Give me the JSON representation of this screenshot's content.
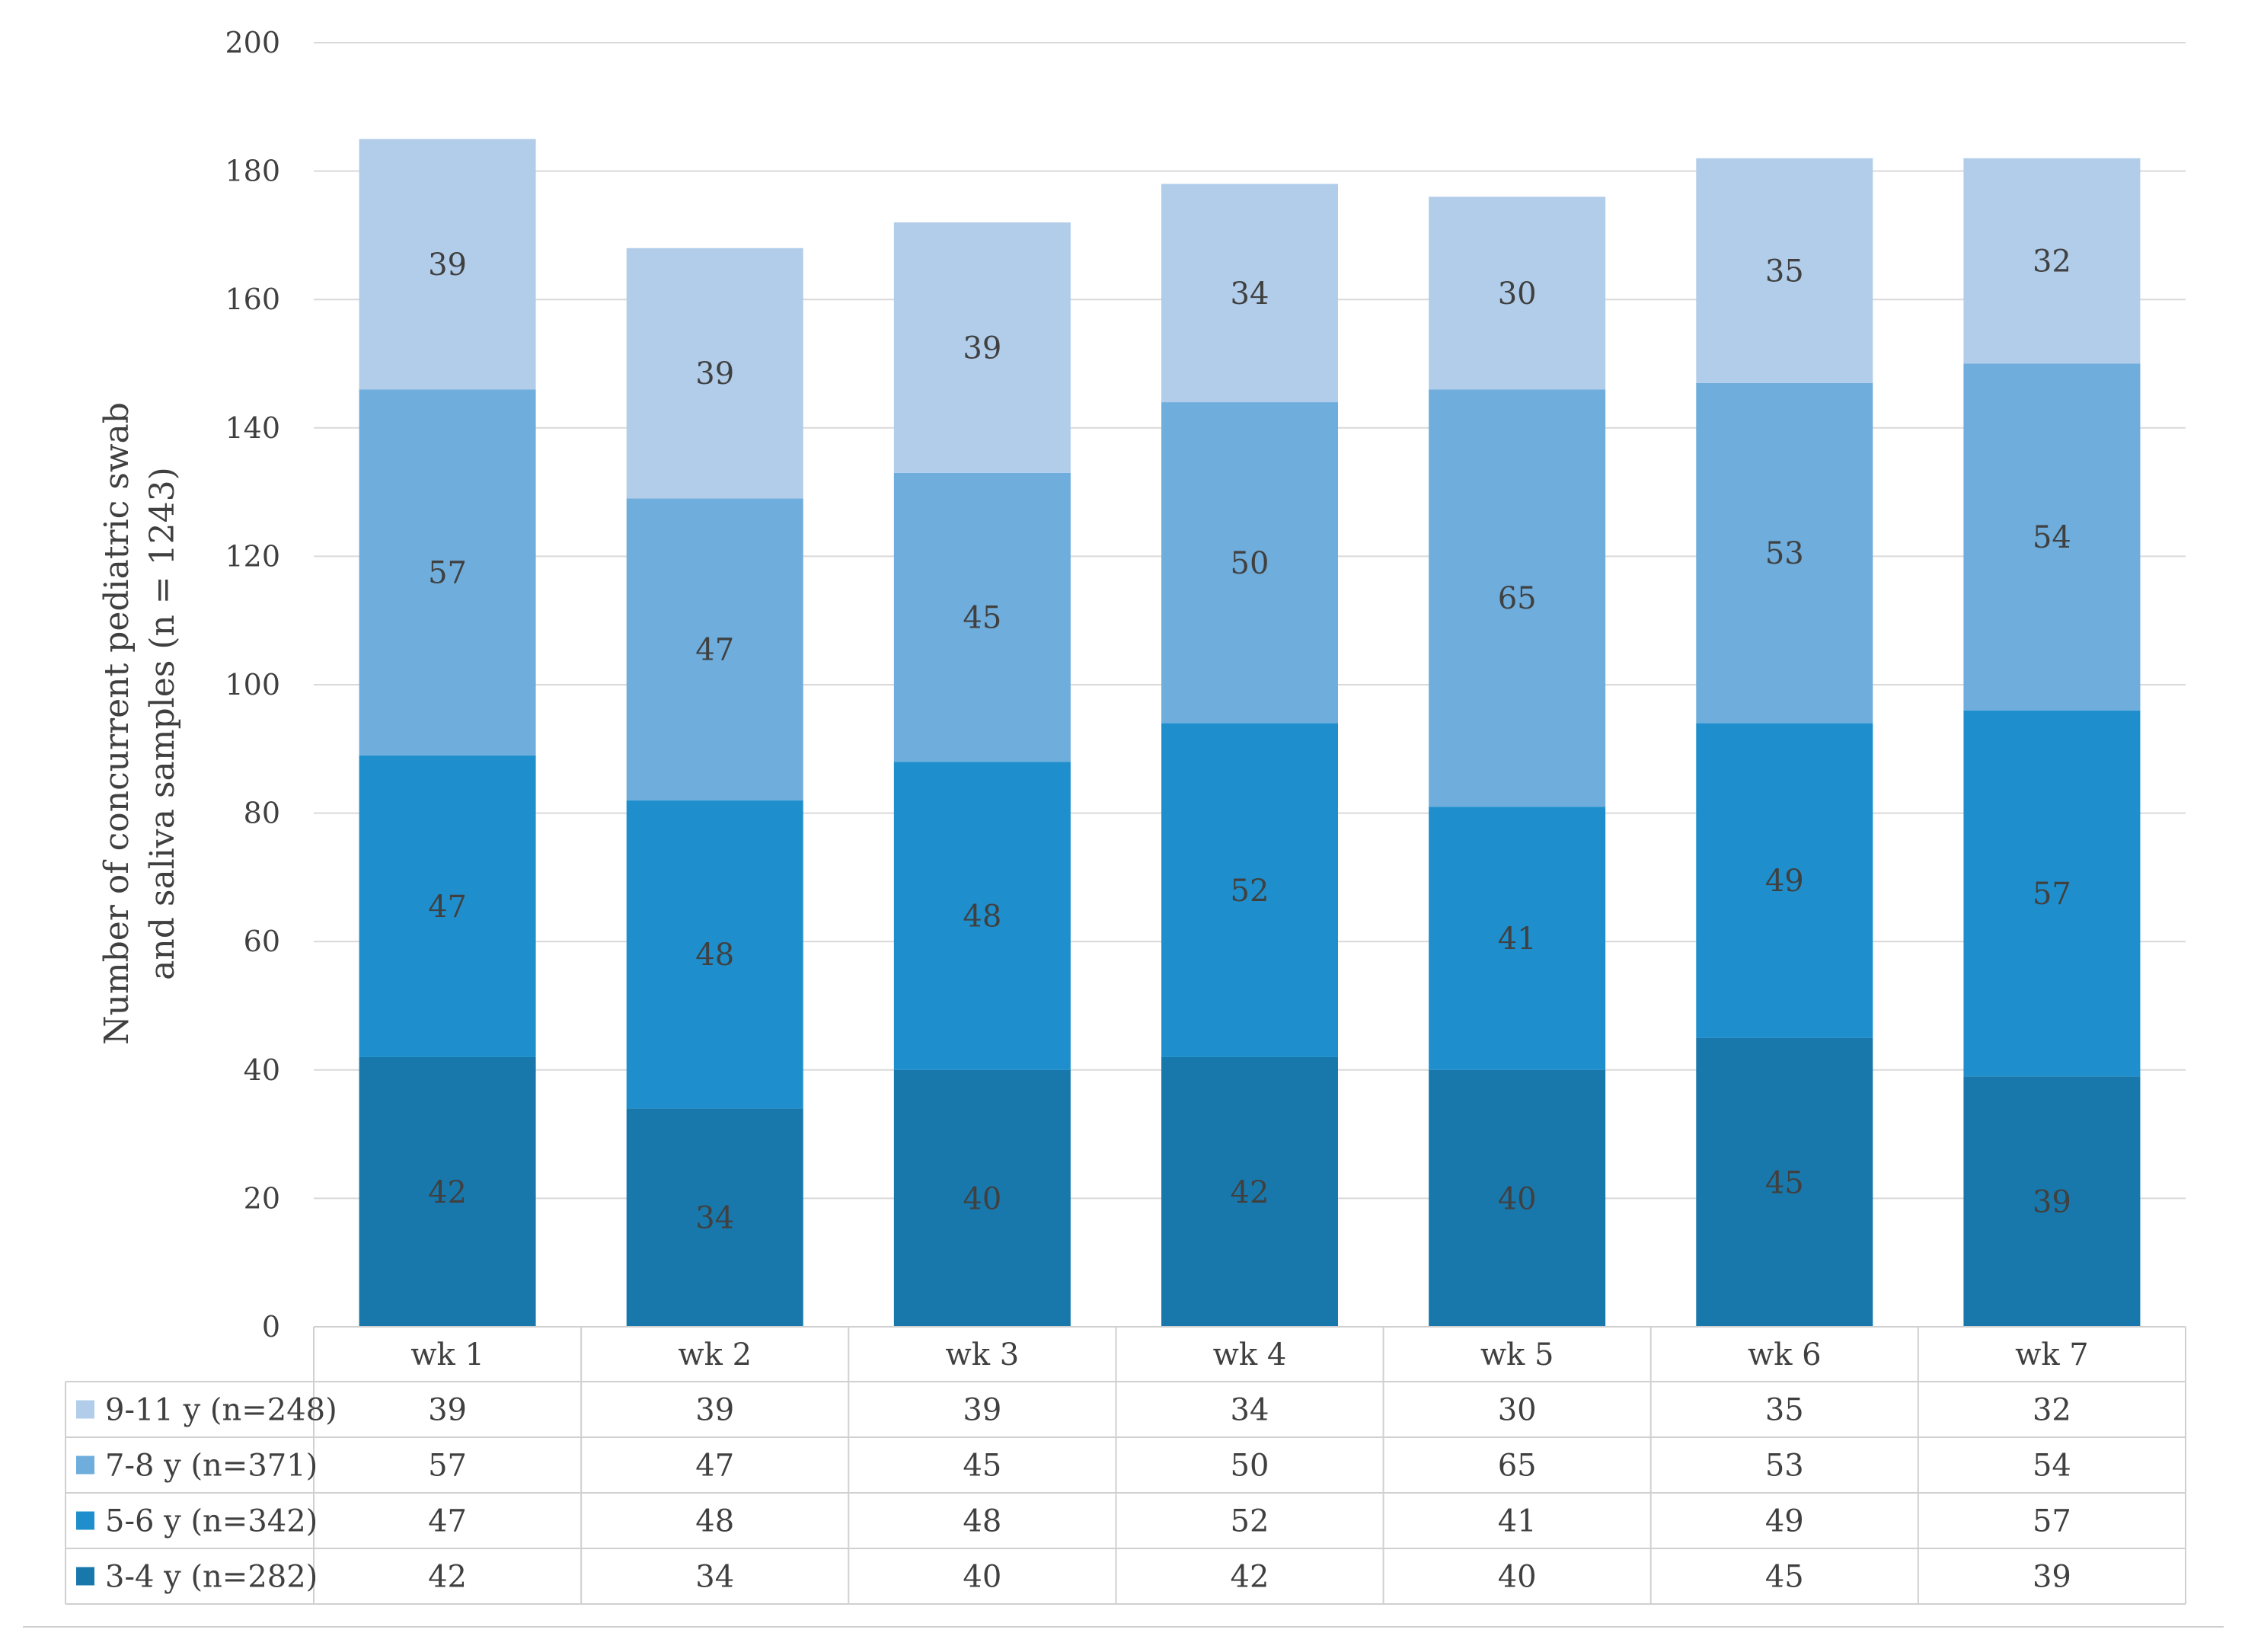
{
  "chart_data": {
    "type": "bar",
    "stacked": true,
    "ylabel_lines": [
      "Number of concurrent pediatric swab",
      "and saliva samples (n = 1243)"
    ],
    "ylim": [
      0,
      200
    ],
    "yticks": [
      "0",
      "20",
      "40",
      "60",
      "80",
      "100",
      "120",
      "140",
      "160",
      "180",
      "200"
    ],
    "grid": true,
    "legend_placement": "data-table-left",
    "categories": [
      "wk 1",
      "wk 2",
      "wk 3",
      "wk 4",
      "wk 5",
      "wk 6",
      "wk 7"
    ],
    "series": [
      {
        "name": "3-4 y (n=282)",
        "color": "#1878ab",
        "values": [
          42,
          34,
          40,
          42,
          40,
          45,
          39
        ]
      },
      {
        "name": "5-6 y (n=342)",
        "color": "#1e8fcc",
        "values": [
          47,
          48,
          48,
          52,
          41,
          49,
          57
        ]
      },
      {
        "name": "7-8 y (n=371)",
        "color": "#6eaddc",
        "values": [
          57,
          47,
          45,
          50,
          65,
          53,
          54
        ]
      },
      {
        "name": "9-11 y (n=248)",
        "color": "#b1cdea",
        "values": [
          39,
          39,
          39,
          34,
          30,
          35,
          32
        ]
      }
    ],
    "table_row_order": [
      3,
      2,
      1,
      0
    ]
  }
}
